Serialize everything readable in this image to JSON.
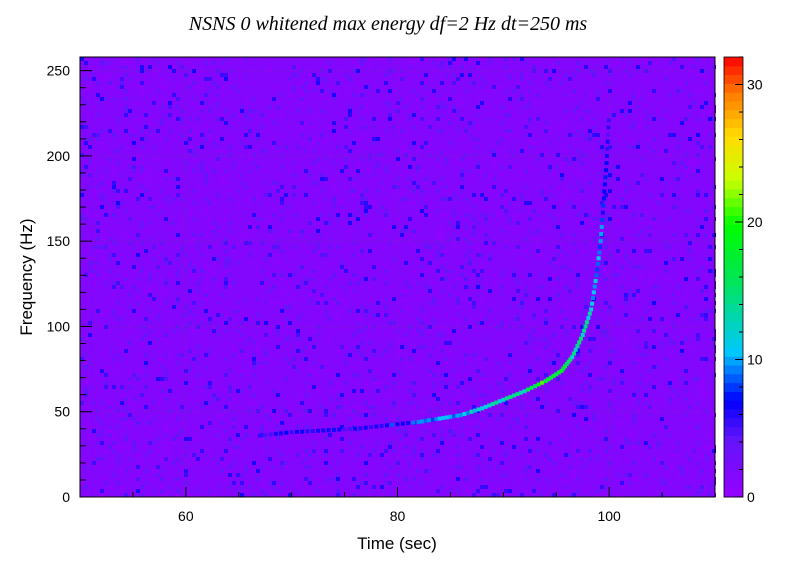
{
  "chart_data": {
    "type": "heatmap",
    "title": "NSNS 0 whitened max energy df=2 Hz dt=250 ms",
    "xlabel": "Time (sec)",
    "ylabel": "Frequency (Hz)",
    "xlim": [
      50,
      110
    ],
    "ylim": [
      0,
      258
    ],
    "x_ticks": [
      60,
      80,
      100
    ],
    "y_ticks": [
      0,
      50,
      100,
      150,
      200,
      250
    ],
    "colorbar": {
      "range": [
        0,
        32
      ],
      "ticks": [
        0,
        10,
        20,
        30
      ],
      "colormap": "rainbow (purple-blue-cyan-green-yellow-red)"
    },
    "background_level": 1.5,
    "grid": true,
    "chirp_track": {
      "description": "frequency-time track of inspiral signal",
      "time": [
        67,
        70,
        73,
        76,
        79,
        82,
        84,
        86,
        88,
        90,
        92,
        94,
        95.5,
        96.5,
        97.5,
        98.3,
        98.8,
        99.2,
        99.5,
        99.8,
        100.0
      ],
      "frequency": [
        36,
        38,
        39,
        40,
        42,
        44,
        46,
        48,
        52,
        57,
        62,
        68,
        74,
        82,
        95,
        110,
        130,
        150,
        175,
        200,
        225
      ],
      "energy": [
        5,
        6,
        6,
        6,
        7,
        8,
        9,
        10,
        12,
        13,
        15,
        20,
        17,
        14,
        13,
        12,
        10,
        9,
        7,
        6,
        5
      ]
    }
  }
}
